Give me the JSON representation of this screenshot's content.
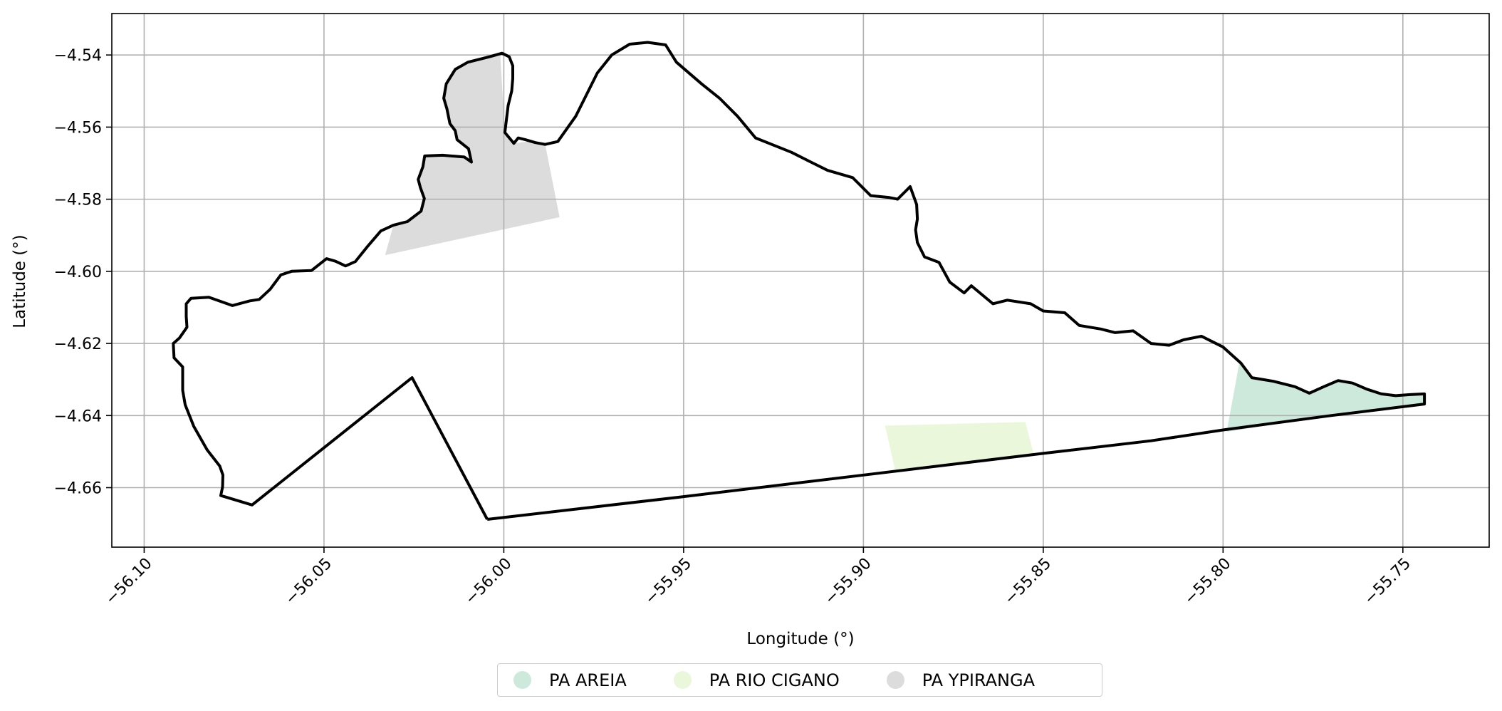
{
  "chart_data": {
    "type": "map",
    "xlabel": "Longitude (°)",
    "ylabel": "Latitude (°)",
    "xlim": [
      -56.109,
      -55.726
    ],
    "ylim": [
      -4.6765,
      -4.5285
    ],
    "x_ticks": [
      -56.1,
      -56.05,
      -56.0,
      -55.95,
      -55.9,
      -55.85,
      -55.8,
      -55.75
    ],
    "x_tick_labels": [
      "−56.10",
      "−56.05",
      "−56.00",
      "−55.95",
      "−55.90",
      "−55.85",
      "−55.80",
      "−55.75"
    ],
    "y_ticks": [
      -4.54,
      -4.56,
      -4.58,
      -4.6,
      -4.62,
      -4.64,
      -4.66
    ],
    "y_tick_labels": [
      "−4.54",
      "−4.56",
      "−4.58",
      "−4.60",
      "−4.62",
      "−4.64",
      "−4.66"
    ],
    "grid": true,
    "legend_position": "bottom-center",
    "boundary": [
      [
        -56.0046,
        -4.6688
      ],
      [
        -56.0255,
        -4.6295
      ],
      [
        -56.07,
        -4.6648
      ],
      [
        -56.0787,
        -4.6622
      ],
      [
        -56.0782,
        -4.6598
      ],
      [
        -56.0781,
        -4.6565
      ],
      [
        -56.079,
        -4.654
      ],
      [
        -56.0825,
        -4.6495
      ],
      [
        -56.0862,
        -4.643
      ],
      [
        -56.0886,
        -4.637
      ],
      [
        -56.0893,
        -4.633
      ],
      [
        -56.0893,
        -4.6265
      ],
      [
        -56.0917,
        -4.624
      ],
      [
        -56.0919,
        -4.62
      ],
      [
        -56.0902,
        -4.6185
      ],
      [
        -56.0881,
        -4.6155
      ],
      [
        -56.0883,
        -4.6125
      ],
      [
        -56.0883,
        -4.609
      ],
      [
        -56.087,
        -4.6075
      ],
      [
        -56.082,
        -4.6072
      ],
      [
        -56.0755,
        -4.6095
      ],
      [
        -56.0706,
        -4.6082
      ],
      [
        -56.068,
        -4.6078
      ],
      [
        -56.065,
        -4.605
      ],
      [
        -56.062,
        -4.601
      ],
      [
        -56.059,
        -4.6
      ],
      [
        -56.0535,
        -4.5998
      ],
      [
        -56.0493,
        -4.5965
      ],
      [
        -56.0468,
        -4.5972
      ],
      [
        -56.044,
        -4.5985
      ],
      [
        -56.0413,
        -4.5973
      ],
      [
        -56.0378,
        -4.593
      ],
      [
        -56.0342,
        -4.5888
      ],
      [
        -56.0307,
        -4.5872
      ],
      [
        -56.0268,
        -4.5862
      ],
      [
        -56.023,
        -4.5833
      ],
      [
        -56.0221,
        -4.5798
      ],
      [
        -56.0232,
        -4.5768
      ],
      [
        -56.0238,
        -4.5745
      ],
      [
        -56.0225,
        -4.571
      ],
      [
        -56.022,
        -4.568
      ],
      [
        -56.017,
        -4.5678
      ],
      [
        -56.011,
        -4.5683
      ],
      [
        -56.009,
        -4.5697
      ],
      [
        -56.0098,
        -4.566
      ],
      [
        -56.013,
        -4.5635
      ],
      [
        -56.0135,
        -4.561
      ],
      [
        -56.015,
        -4.559
      ],
      [
        -56.0158,
        -4.555
      ],
      [
        -56.0167,
        -4.552
      ],
      [
        -56.016,
        -4.548
      ],
      [
        -56.0135,
        -4.544
      ],
      [
        -56.01,
        -4.542
      ],
      [
        -56.004,
        -4.5405
      ],
      [
        -56.0005,
        -4.5395
      ],
      [
        -55.9985,
        -4.5405
      ],
      [
        -55.9975,
        -4.543
      ],
      [
        -55.9975,
        -4.5465
      ],
      [
        -55.9978,
        -4.55
      ],
      [
        -55.9988,
        -4.554
      ],
      [
        -55.9997,
        -4.5615
      ],
      [
        -55.9972,
        -4.5645
      ],
      [
        -55.996,
        -4.563
      ],
      [
        -55.994,
        -4.5635
      ],
      [
        -55.9912,
        -4.5643
      ],
      [
        -55.9885,
        -4.5648
      ],
      [
        -55.985,
        -4.564
      ],
      [
        -55.98,
        -4.557
      ],
      [
        -55.974,
        -4.545
      ],
      [
        -55.97,
        -4.54
      ],
      [
        -55.965,
        -4.537
      ],
      [
        -55.96,
        -4.5365
      ],
      [
        -55.955,
        -4.5372
      ],
      [
        -55.952,
        -4.542
      ],
      [
        -55.945,
        -4.548
      ],
      [
        -55.94,
        -4.552
      ],
      [
        -55.935,
        -4.557
      ],
      [
        -55.93,
        -4.563
      ],
      [
        -55.925,
        -4.565
      ],
      [
        -55.92,
        -4.567
      ],
      [
        -55.915,
        -4.5695
      ],
      [
        -55.91,
        -4.572
      ],
      [
        -55.903,
        -4.574
      ],
      [
        -55.898,
        -4.579
      ],
      [
        -55.893,
        -4.5795
      ],
      [
        -55.8905,
        -4.58
      ],
      [
        -55.887,
        -4.5765
      ],
      [
        -55.8852,
        -4.5815
      ],
      [
        -55.885,
        -4.5855
      ],
      [
        -55.8855,
        -4.5885
      ],
      [
        -55.885,
        -4.592
      ],
      [
        -55.883,
        -4.596
      ],
      [
        -55.879,
        -4.5975
      ],
      [
        -55.876,
        -4.603
      ],
      [
        -55.872,
        -4.606
      ],
      [
        -55.87,
        -4.604
      ],
      [
        -55.864,
        -4.609
      ],
      [
        -55.86,
        -4.608
      ],
      [
        -55.8535,
        -4.609
      ],
      [
        -55.85,
        -4.611
      ],
      [
        -55.844,
        -4.6115
      ],
      [
        -55.84,
        -4.615
      ],
      [
        -55.834,
        -4.616
      ],
      [
        -55.83,
        -4.617
      ],
      [
        -55.825,
        -4.6165
      ],
      [
        -55.82,
        -4.62
      ],
      [
        -55.815,
        -4.6205
      ],
      [
        -55.811,
        -4.619
      ],
      [
        -55.806,
        -4.618
      ],
      [
        -55.8,
        -4.621
      ],
      [
        -55.795,
        -4.6255
      ],
      [
        -55.792,
        -4.6295
      ],
      [
        -55.786,
        -4.6305
      ],
      [
        -55.78,
        -4.632
      ],
      [
        -55.776,
        -4.6338
      ],
      [
        -55.772,
        -4.632
      ],
      [
        -55.768,
        -4.6303
      ],
      [
        -55.764,
        -4.631
      ],
      [
        -55.76,
        -4.6327
      ],
      [
        -55.756,
        -4.634
      ],
      [
        -55.752,
        -4.6345
      ],
      [
        -55.748,
        -4.6342
      ],
      [
        -55.744,
        -4.634
      ],
      [
        -55.744,
        -4.636
      ],
      [
        -55.744,
        -4.6368
      ],
      [
        -55.77,
        -4.64
      ],
      [
        -55.8,
        -4.644
      ],
      [
        -55.82,
        -4.647
      ],
      [
        -55.85,
        -4.6505
      ],
      [
        -55.9,
        -4.6565
      ],
      [
        -55.95,
        -4.6625
      ],
      [
        -56.0046,
        -4.6688
      ]
    ],
    "series": [
      {
        "name": "PA AREIA",
        "color": "#cce9dc",
        "polygon": [
          [
            -55.7955,
            -4.6255
          ],
          [
            -55.792,
            -4.6295
          ],
          [
            -55.786,
            -4.6305
          ],
          [
            -55.78,
            -4.632
          ],
          [
            -55.776,
            -4.6338
          ],
          [
            -55.772,
            -4.632
          ],
          [
            -55.768,
            -4.6303
          ],
          [
            -55.764,
            -4.631
          ],
          [
            -55.76,
            -4.6327
          ],
          [
            -55.756,
            -4.634
          ],
          [
            -55.752,
            -4.6345
          ],
          [
            -55.748,
            -4.6342
          ],
          [
            -55.744,
            -4.634
          ],
          [
            -55.744,
            -4.6368
          ],
          [
            -55.77,
            -4.64
          ],
          [
            -55.799,
            -4.6445
          ]
        ]
      },
      {
        "name": "PA RIO CIGANO",
        "color": "#eaf7db",
        "polygon": [
          [
            -55.894,
            -4.6428
          ],
          [
            -55.855,
            -4.6418
          ],
          [
            -55.8527,
            -4.6505
          ],
          [
            -55.8912,
            -4.655
          ]
        ]
      },
      {
        "name": "PA YPIRANGA",
        "color": "#dcdcdc",
        "polygon": [
          [
            -56.033,
            -4.5955
          ],
          [
            -56.0307,
            -4.5872
          ],
          [
            -56.0268,
            -4.5862
          ],
          [
            -56.023,
            -4.5833
          ],
          [
            -56.0221,
            -4.5798
          ],
          [
            -56.0232,
            -4.5768
          ],
          [
            -56.0238,
            -4.5745
          ],
          [
            -56.0225,
            -4.571
          ],
          [
            -56.022,
            -4.568
          ],
          [
            -56.017,
            -4.5678
          ],
          [
            -56.011,
            -4.5683
          ],
          [
            -56.009,
            -4.5697
          ],
          [
            -56.0098,
            -4.566
          ],
          [
            -56.013,
            -4.5635
          ],
          [
            -56.0135,
            -4.561
          ],
          [
            -56.015,
            -4.559
          ],
          [
            -56.0158,
            -4.555
          ],
          [
            -56.0167,
            -4.552
          ],
          [
            -56.016,
            -4.548
          ],
          [
            -56.0135,
            -4.544
          ],
          [
            -56.01,
            -4.542
          ],
          [
            -56.004,
            -4.5405
          ],
          [
            -56.001,
            -4.54
          ],
          [
            -55.9997,
            -4.5615
          ],
          [
            -55.9972,
            -4.5645
          ],
          [
            -55.9935,
            -4.564
          ],
          [
            -55.9885,
            -4.5648
          ],
          [
            -55.9845,
            -4.585
          ]
        ]
      }
    ]
  }
}
